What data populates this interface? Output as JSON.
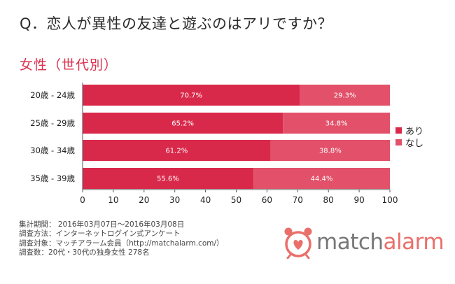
{
  "question": "Q．恋人が異性の友達と遊ぶのはアリですか？",
  "subtitle": "女性（世代別）",
  "colors": {
    "accent": "#d9304d",
    "ari": "#d9294a",
    "nashi": "#e25069",
    "logo": "#e96f6a"
  },
  "chart_data": {
    "type": "bar",
    "orientation": "horizontal",
    "stacked": true,
    "categories": [
      "20歳 - 24歳",
      "25歳 - 29歳",
      "30歳 - 34歳",
      "35歳 - 39歳"
    ],
    "series": [
      {
        "name": "あり",
        "values": [
          70.7,
          65.2,
          61.2,
          55.6
        ],
        "labels": [
          "70.7%",
          "65.2%",
          "61.2%",
          "55.6%"
        ]
      },
      {
        "name": "なし",
        "values": [
          29.3,
          34.8,
          38.8,
          44.4
        ],
        "labels": [
          "29.3%",
          "34.8%",
          "38.8%",
          "44.4%"
        ]
      }
    ],
    "xlim": [
      0,
      100
    ],
    "xticks": [
      "0",
      "10",
      "20",
      "30",
      "40",
      "50",
      "60",
      "70",
      "80",
      "90",
      "100"
    ],
    "legend_position": "right"
  },
  "survey": {
    "period": "集計期間： 2016年03月07日～2016年03月08日",
    "method": "調査方法：インターネットログイン式アンケート",
    "target": "調査対象：マッチアラーム会員（http://matchalarm.com/）",
    "count": "調査数：20代・30代の独身女性 278名"
  },
  "logo": {
    "part1": "match",
    "part2": "alarm",
    "icon": "alarm-clock-heart-icon"
  }
}
